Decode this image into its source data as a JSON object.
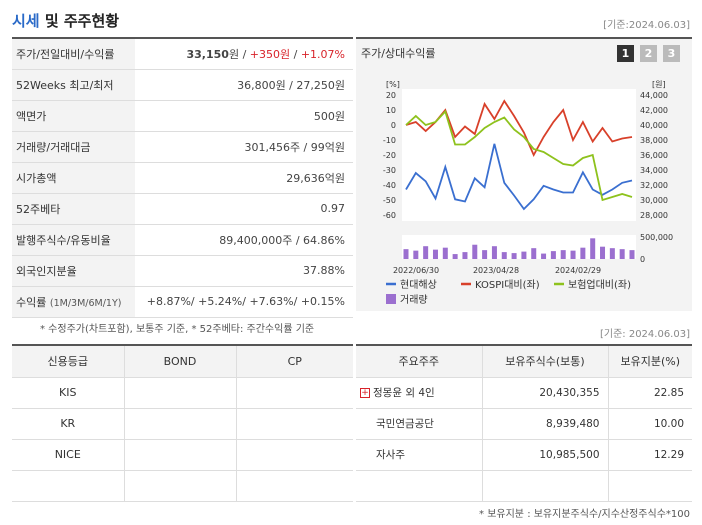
{
  "header": {
    "title_blue": "시세",
    "title_rest": " 및 주주현황",
    "base_date": "[기준:2024.06.03]"
  },
  "summary_rows": [
    {
      "label": "주가/전일대비/수익률",
      "value_main": "33,150",
      "unit_main": "원",
      "sep1": " / ",
      "value_chg": "+350원",
      "sep2": " / ",
      "value_pct": "+1.07%"
    },
    {
      "label": "52Weeks 최고/최저",
      "value": "36,800원 / 27,250원"
    },
    {
      "label": "액면가",
      "value": "500원"
    },
    {
      "label": "거래량/거래대금",
      "value": "301,456주 / 99억원"
    },
    {
      "label": "시가총액",
      "value": "29,636억원"
    },
    {
      "label": "52주베타",
      "value": "0.97"
    },
    {
      "label": "발행주식수/유동비율",
      "value": "89,400,000주 / 64.86%"
    },
    {
      "label": "외국인지분율",
      "value": "37.88%"
    },
    {
      "label": "수익률",
      "label_small": "(1M/3M/6M/1Y)",
      "value": "+8.87%/ +5.24%/ +7.63%/ +0.15%"
    }
  ],
  "note1": "* 수정주가(차트포함), 보통주 기준, * 52주베타: 주간수익률 기준",
  "chart_panel": {
    "title": "주가/상대수익률",
    "pages": [
      "1",
      "2",
      "3"
    ],
    "active_page": 0,
    "left_axis_unit": "[%]",
    "right_axis_unit": "[원]",
    "volume_ticks": [
      "500,000",
      "0"
    ]
  },
  "chart_data": {
    "type": "line",
    "x_labels": [
      "2022/06/30",
      "2023/04/28",
      "2024/02/29"
    ],
    "ylim_left": [
      -60,
      20
    ],
    "yticks_left": [
      20,
      10,
      0,
      -10,
      -20,
      -30,
      -40,
      -50,
      -60
    ],
    "ylim_right": [
      28000,
      44000
    ],
    "yticks_right": [
      44000,
      42000,
      40000,
      38000,
      36000,
      34000,
      32000,
      30000,
      28000
    ],
    "colors": {
      "price": "#3a6fd0",
      "kospi": "#d8402a",
      "sector": "#8ec21d",
      "volume": "#9b6fcf"
    },
    "series": [
      {
        "name": "현대해상",
        "axis": "right",
        "values": [
          31400,
          33600,
          32500,
          30200,
          34400,
          30100,
          29800,
          32900,
          31700,
          37500,
          32300,
          30600,
          28800,
          30100,
          31900,
          31400,
          31000,
          31000,
          33700,
          31400,
          30700,
          31400,
          32300,
          32600
        ]
      },
      {
        "name": "KOSPI대비(좌)",
        "axis": "left",
        "values": [
          0,
          2,
          -4,
          2,
          10,
          -8,
          -1,
          -6,
          14,
          4,
          16,
          6,
          -5,
          -20,
          -8,
          2,
          10,
          -10,
          2,
          -11,
          -2,
          -11,
          -9,
          -8
        ]
      },
      {
        "name": "보험업대비(좌)",
        "axis": "left",
        "values": [
          0,
          6,
          0,
          2,
          9,
          -13,
          -13,
          -8,
          -2,
          2,
          5,
          -3,
          -8,
          -16,
          -18,
          -22,
          -26,
          -27,
          -22,
          -20,
          -50,
          -48,
          -46,
          -48
        ]
      },
      {
        "name": "거래량",
        "axis": "volume",
        "values": [
          200000,
          170000,
          260000,
          190000,
          230000,
          100000,
          140000,
          290000,
          180000,
          260000,
          140000,
          120000,
          150000,
          220000,
          110000,
          160000,
          180000,
          170000,
          230000,
          420000,
          250000,
          220000,
          200000,
          180000
        ]
      }
    ],
    "volume_max": 650000
  },
  "credit_table": {
    "headers": [
      "신용등급",
      "BOND",
      "CP"
    ],
    "rows": [
      [
        "KIS",
        "",
        ""
      ],
      [
        "KR",
        "",
        ""
      ],
      [
        "NICE",
        "",
        ""
      ],
      [
        "",
        "",
        ""
      ]
    ]
  },
  "base_date2": "[기준: 2024.06.03]",
  "holder_table": {
    "headers": [
      "주요주주",
      "보유주식수(보통)",
      "보유지분(%)"
    ],
    "rows": [
      {
        "name": "정몽윤 외 4인",
        "expandable": true,
        "shares": "20,430,355",
        "pct": "22.85"
      },
      {
        "name": "국민연금공단",
        "expandable": false,
        "shares": "8,939,480",
        "pct": "10.00"
      },
      {
        "name": "자사주",
        "expandable": false,
        "shares": "10,985,500",
        "pct": "12.29"
      }
    ]
  },
  "note2": "* 보유지분 : 보유지분주식수/지수산정주식수*100"
}
